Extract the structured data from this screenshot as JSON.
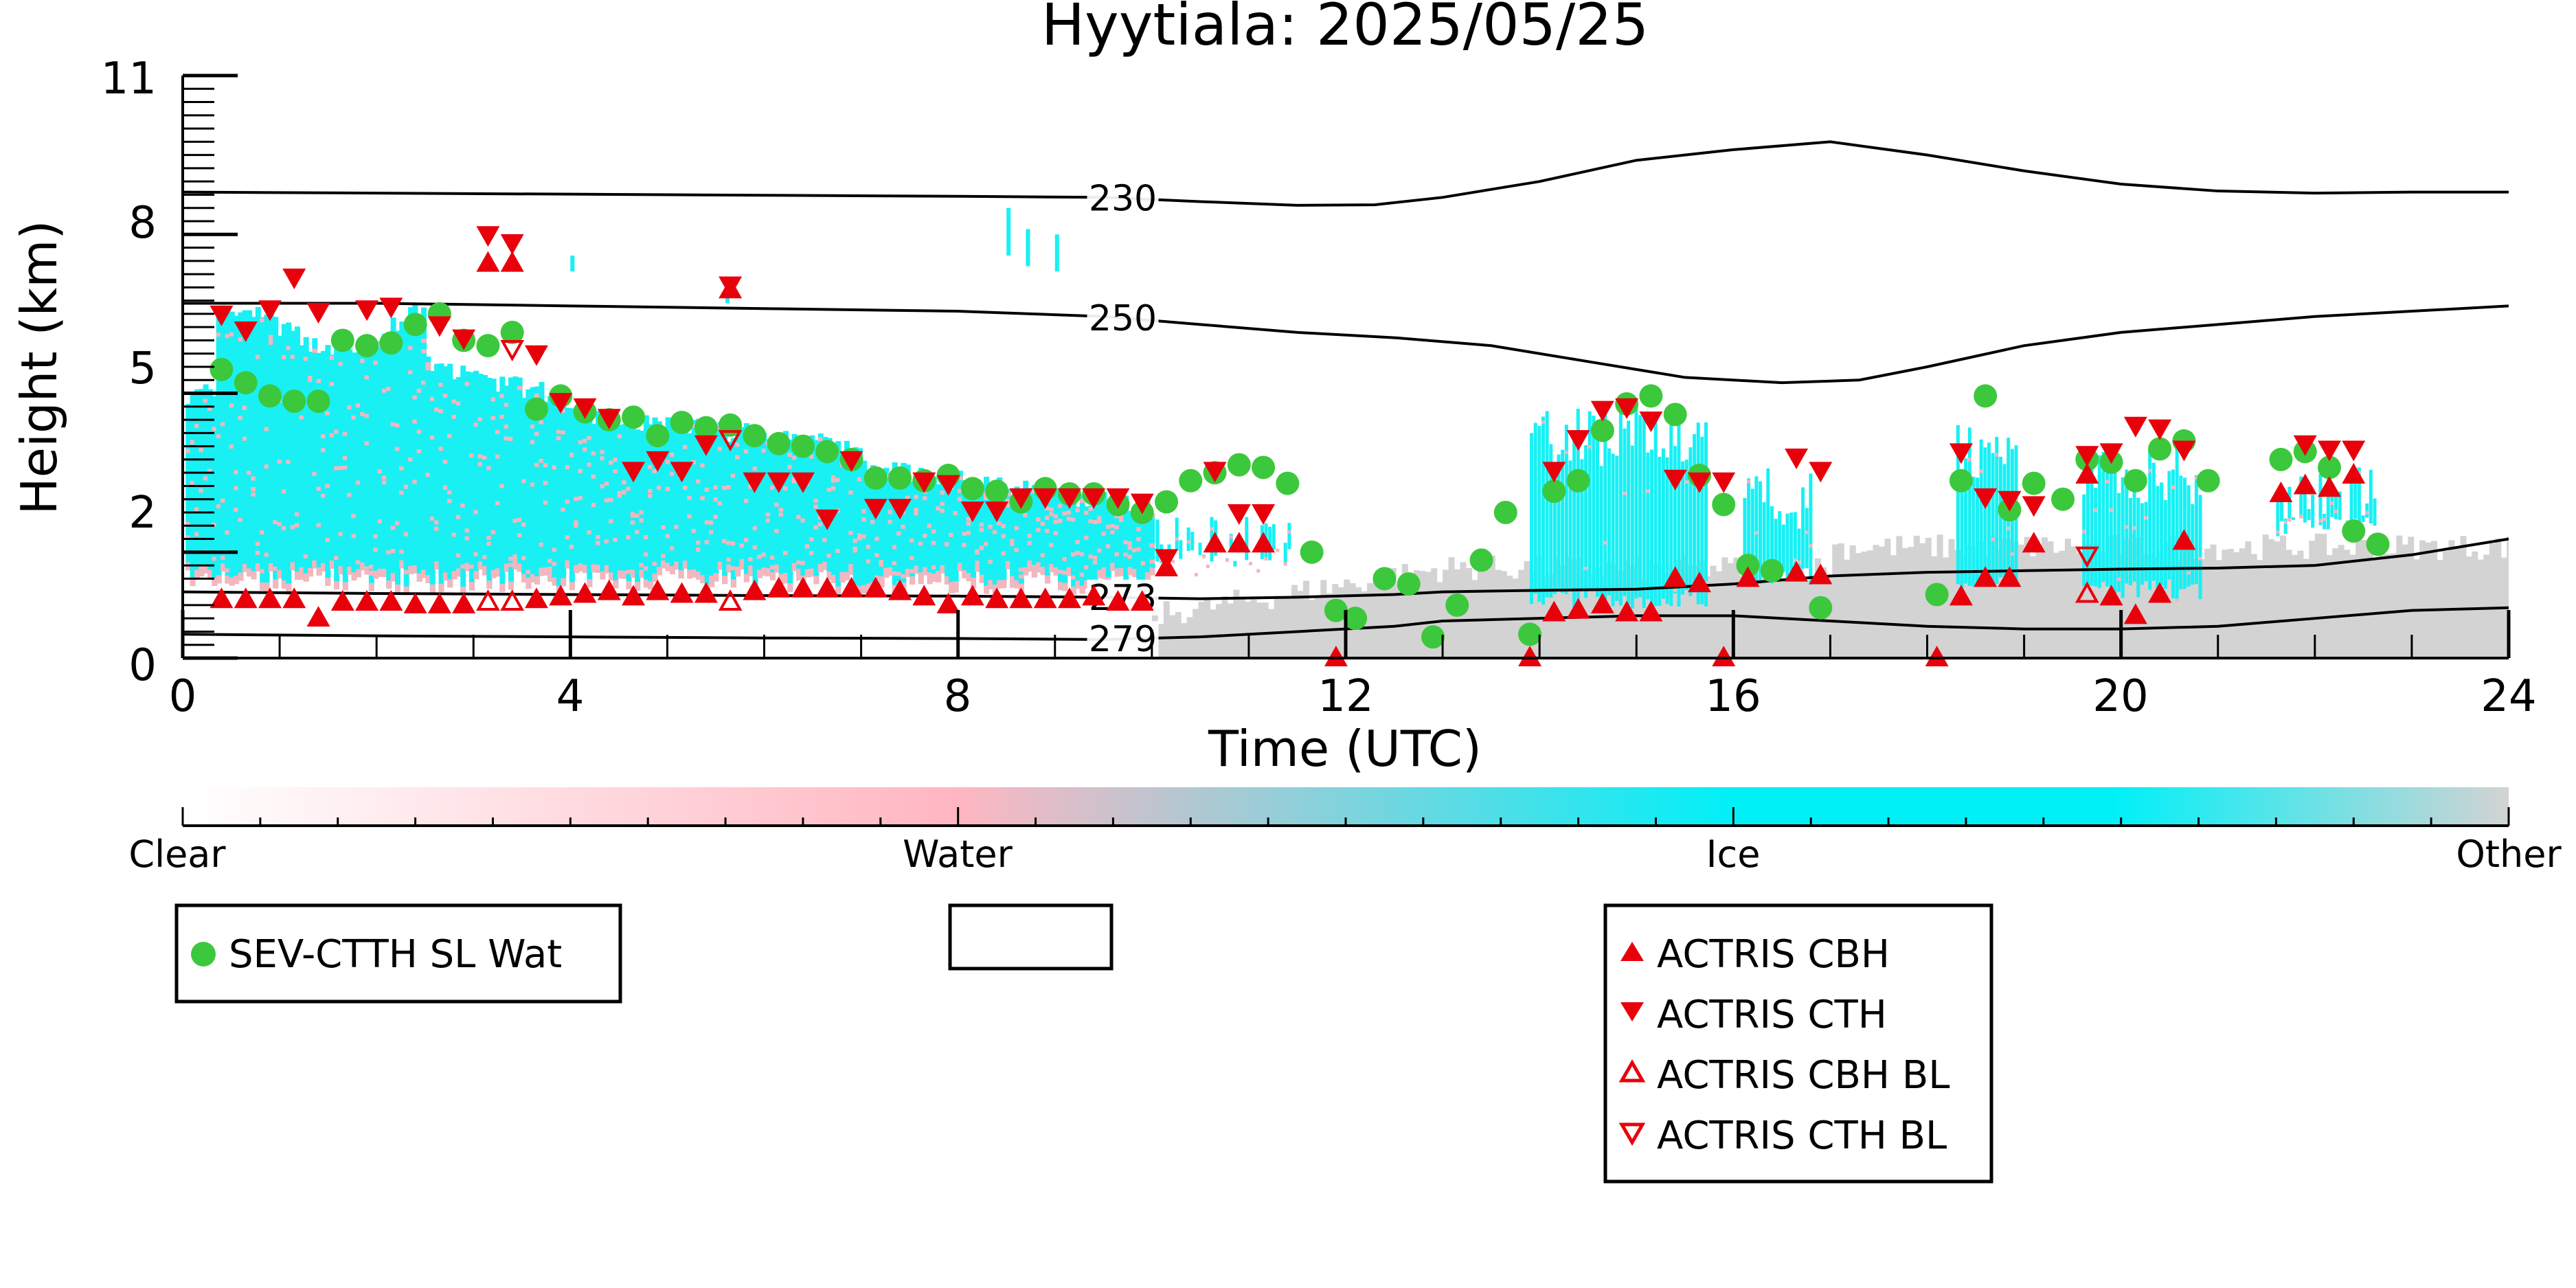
{
  "chart_data": {
    "type": "scatter",
    "title": "Hyytiala: 2025/05/25",
    "xlabel": "Time (UTC)",
    "ylabel": "Height (km)",
    "xlim": [
      0,
      24
    ],
    "ylim": [
      0,
      11
    ],
    "x_ticks": [
      0,
      4,
      8,
      12,
      16,
      20,
      24
    ],
    "x_tick_labels": [
      "0",
      "4",
      "8",
      "12",
      "16",
      "20",
      "24"
    ],
    "y_ticks": [
      0,
      2,
      5,
      8,
      11
    ],
    "y_tick_labels": [
      "0",
      "2",
      "5",
      "8",
      "11"
    ],
    "colorbar": {
      "labels": [
        "Clear",
        "Water",
        "Ice",
        "Other"
      ],
      "colors": [
        "#ffffff",
        "#ffb6c1",
        "#00f0f8",
        "#d3d3d3"
      ]
    },
    "colors": {
      "ice": "#18f0f4",
      "water": "#f4b6bf",
      "other": "#d3d3d3",
      "sev": "#3cc83c",
      "actris": "#e8000b"
    },
    "isotherms": [
      {
        "label": "230",
        "x": [
          0,
          2,
          4,
          6,
          8,
          9.5,
          10.5,
          11.5,
          12.3,
          13,
          14,
          15,
          16,
          17,
          18,
          19,
          20,
          21,
          22,
          23,
          24
        ],
        "y": [
          8.8,
          8.78,
          8.76,
          8.74,
          8.72,
          8.7,
          8.62,
          8.55,
          8.56,
          8.7,
          9.0,
          9.4,
          9.6,
          9.75,
          9.5,
          9.2,
          8.95,
          8.82,
          8.78,
          8.8,
          8.8
        ]
      },
      {
        "label": "250",
        "x": [
          0,
          2,
          4,
          6,
          8,
          9.5,
          10.5,
          11.5,
          12.5,
          13.5,
          14.5,
          15.5,
          16.5,
          17.3,
          18,
          19,
          20,
          21,
          22,
          23,
          24
        ],
        "y": [
          6.7,
          6.7,
          6.65,
          6.6,
          6.55,
          6.45,
          6.3,
          6.15,
          6.05,
          5.9,
          5.6,
          5.3,
          5.2,
          5.25,
          5.5,
          5.9,
          6.15,
          6.3,
          6.45,
          6.55,
          6.65
        ]
      },
      {
        "label": "273",
        "x": [
          0,
          2,
          4,
          6,
          8,
          9.5,
          10.5,
          11.5,
          12.5,
          13,
          14,
          15,
          16,
          17,
          18,
          19,
          20,
          21,
          22,
          23,
          24
        ],
        "y": [
          1.25,
          1.22,
          1.2,
          1.18,
          1.17,
          1.15,
          1.12,
          1.15,
          1.2,
          1.25,
          1.28,
          1.3,
          1.4,
          1.55,
          1.62,
          1.65,
          1.68,
          1.7,
          1.75,
          1.95,
          2.25
        ]
      },
      {
        "label": "279",
        "x": [
          0,
          2,
          4,
          6,
          8,
          9.5,
          10.5,
          11.5,
          12.5,
          13,
          14,
          15,
          16,
          17,
          18,
          19,
          20,
          21,
          22,
          23,
          24
        ],
        "y": [
          0.45,
          0.42,
          0.4,
          0.38,
          0.37,
          0.35,
          0.4,
          0.5,
          0.6,
          0.7,
          0.75,
          0.8,
          0.8,
          0.7,
          0.6,
          0.55,
          0.55,
          0.6,
          0.75,
          0.9,
          0.95
        ]
      }
    ],
    "series": [
      {
        "name": "SEV-CTTH SL Wat",
        "marker": "circle",
        "x": [
          0.4,
          0.65,
          0.9,
          1.15,
          1.4,
          1.65,
          1.9,
          2.15,
          2.4,
          2.65,
          2.9,
          3.15,
          3.4,
          3.65,
          3.9,
          4.15,
          4.4,
          4.65,
          4.9,
          5.15,
          5.4,
          5.65,
          5.9,
          6.15,
          6.4,
          6.65,
          6.9,
          7.15,
          7.4,
          7.65,
          7.9,
          8.15,
          8.4,
          8.65,
          8.9,
          9.15,
          9.4,
          9.65,
          9.9,
          10.15,
          10.4,
          10.65,
          10.9,
          11.15,
          11.4,
          11.65,
          11.9,
          12.1,
          12.4,
          12.65,
          12.9,
          13.15,
          13.4,
          13.65,
          13.9,
          14.15,
          14.4,
          14.65,
          14.9,
          15.15,
          15.4,
          15.65,
          15.9,
          16.15,
          16.4,
          16.9,
          18.1,
          18.35,
          18.6,
          18.85,
          19.1,
          19.4,
          19.65,
          19.9,
          20.15,
          20.4,
          20.65,
          20.9,
          21.65,
          21.9,
          22.15,
          22.4,
          22.65
        ],
        "y": [
          5.45,
          5.2,
          4.95,
          4.85,
          4.85,
          6.0,
          5.9,
          5.95,
          6.3,
          6.5,
          6.0,
          5.9,
          6.15,
          4.7,
          4.95,
          4.65,
          4.5,
          4.55,
          4.2,
          4.45,
          4.35,
          4.4,
          4.2,
          4.05,
          4.0,
          3.9,
          3.75,
          3.4,
          3.4,
          3.35,
          3.45,
          3.2,
          3.15,
          2.95,
          3.2,
          3.1,
          3.1,
          2.9,
          2.75,
          2.95,
          3.35,
          3.5,
          3.65,
          3.6,
          3.3,
          2.0,
          0.9,
          0.75,
          1.5,
          1.4,
          0.4,
          1.0,
          1.85,
          2.75,
          0.45,
          3.15,
          3.35,
          4.3,
          4.8,
          4.95,
          4.6,
          3.45,
          2.9,
          1.75,
          1.65,
          0.95,
          1.2,
          3.35,
          4.95,
          2.8,
          3.3,
          3.0,
          3.75,
          3.7,
          3.35,
          3.95,
          4.1,
          3.35,
          3.75,
          3.9,
          3.6,
          2.4,
          2.15
        ]
      },
      {
        "name": "ACTRIS CBH",
        "marker": "triangle-up",
        "x": [
          0.4,
          0.65,
          0.9,
          1.15,
          1.4,
          1.65,
          1.9,
          2.15,
          2.4,
          2.65,
          2.9,
          3.15,
          3.4,
          3.65,
          3.9,
          4.15,
          4.4,
          4.65,
          4.9,
          5.15,
          5.4,
          5.65,
          5.9,
          6.15,
          6.4,
          6.65,
          6.9,
          7.15,
          7.4,
          7.65,
          7.9,
          8.15,
          8.4,
          8.65,
          8.9,
          9.15,
          9.4,
          9.65,
          9.9,
          10.15,
          10.65,
          10.9,
          11.15,
          11.9,
          13.9,
          14.15,
          14.4,
          14.65,
          14.9,
          15.15,
          15.4,
          15.65,
          15.9,
          16.15,
          16.65,
          16.9,
          18.1,
          18.35,
          18.6,
          18.85,
          19.1,
          19.65,
          19.9,
          20.15,
          20.4,
          20.65,
          21.65,
          21.9,
          22.15,
          22.4
        ],
        "y": [
          1.1,
          1.1,
          1.1,
          1.1,
          0.75,
          1.05,
          1.05,
          1.05,
          1.0,
          1.0,
          1.0,
          7.45,
          7.45,
          1.1,
          1.15,
          1.2,
          1.25,
          1.15,
          1.25,
          1.2,
          1.2,
          6.95,
          1.25,
          1.3,
          1.3,
          1.3,
          1.3,
          1.3,
          1.25,
          1.15,
          1.0,
          1.15,
          1.1,
          1.1,
          1.1,
          1.1,
          1.15,
          1.05,
          1.05,
          1.7,
          2.15,
          2.15,
          2.15,
          0.0,
          0.0,
          0.85,
          0.9,
          1.0,
          0.85,
          0.85,
          1.5,
          1.4,
          0.0,
          1.5,
          1.6,
          1.55,
          0.0,
          1.15,
          1.5,
          1.5,
          2.15,
          3.45,
          1.15,
          0.8,
          1.2,
          2.2,
          3.1,
          3.25,
          3.2,
          3.45
        ]
      },
      {
        "name": "ACTRIS CTH",
        "marker": "triangle-down",
        "x": [
          0.4,
          0.65,
          0.9,
          1.15,
          1.4,
          1.9,
          2.15,
          2.65,
          2.9,
          3.15,
          3.4,
          3.65,
          3.9,
          4.15,
          4.4,
          4.65,
          4.9,
          5.15,
          5.4,
          5.65,
          5.9,
          6.15,
          6.4,
          6.65,
          6.9,
          7.15,
          7.4,
          7.65,
          7.9,
          8.15,
          8.4,
          8.65,
          8.9,
          9.15,
          9.4,
          9.65,
          9.9,
          10.15,
          10.65,
          10.9,
          11.15,
          14.15,
          14.4,
          14.65,
          14.9,
          15.15,
          15.4,
          15.65,
          15.9,
          16.65,
          16.9,
          18.35,
          18.6,
          18.85,
          19.1,
          19.65,
          19.9,
          20.15,
          20.4,
          20.65,
          21.9,
          22.15,
          22.4
        ],
        "y": [
          6.5,
          6.2,
          6.6,
          7.2,
          6.55,
          6.6,
          6.65,
          6.3,
          6.05,
          8.0,
          7.85,
          5.75,
          4.85,
          4.75,
          4.55,
          3.55,
          3.75,
          3.55,
          4.05,
          7.05,
          3.35,
          3.35,
          3.35,
          2.65,
          3.75,
          2.85,
          2.85,
          3.35,
          3.3,
          2.8,
          2.8,
          3.05,
          3.05,
          3.05,
          3.05,
          3.05,
          2.95,
          1.9,
          3.55,
          2.75,
          2.75,
          3.55,
          4.15,
          4.7,
          4.75,
          4.5,
          3.4,
          3.35,
          3.35,
          3.8,
          3.55,
          3.9,
          3.05,
          3.0,
          2.9,
          3.85,
          3.9,
          4.4,
          4.35,
          3.95,
          4.05,
          3.95,
          3.95
        ]
      },
      {
        "name": "ACTRIS CBH BL",
        "marker": "triangle-up-open",
        "x": [
          3.15,
          3.4,
          5.65,
          19.65
        ],
        "y": [
          1.05,
          1.05,
          1.05,
          1.2
        ]
      },
      {
        "name": "ACTRIS CTH BL",
        "marker": "triangle-down-open",
        "x": [
          3.4,
          5.65,
          19.65
        ],
        "y": [
          5.85,
          4.15,
          1.95
        ]
      }
    ],
    "legends": [
      {
        "entries": [
          "SEV-CTTH SL Wat"
        ],
        "placement": "lower-left"
      },
      {
        "entries": [],
        "placement": "lower-center"
      },
      {
        "entries": [
          "ACTRIS CBH",
          "ACTRIS CTH",
          "ACTRIS CBH BL",
          "ACTRIS CTH BL"
        ],
        "placement": "lower-right"
      }
    ]
  }
}
